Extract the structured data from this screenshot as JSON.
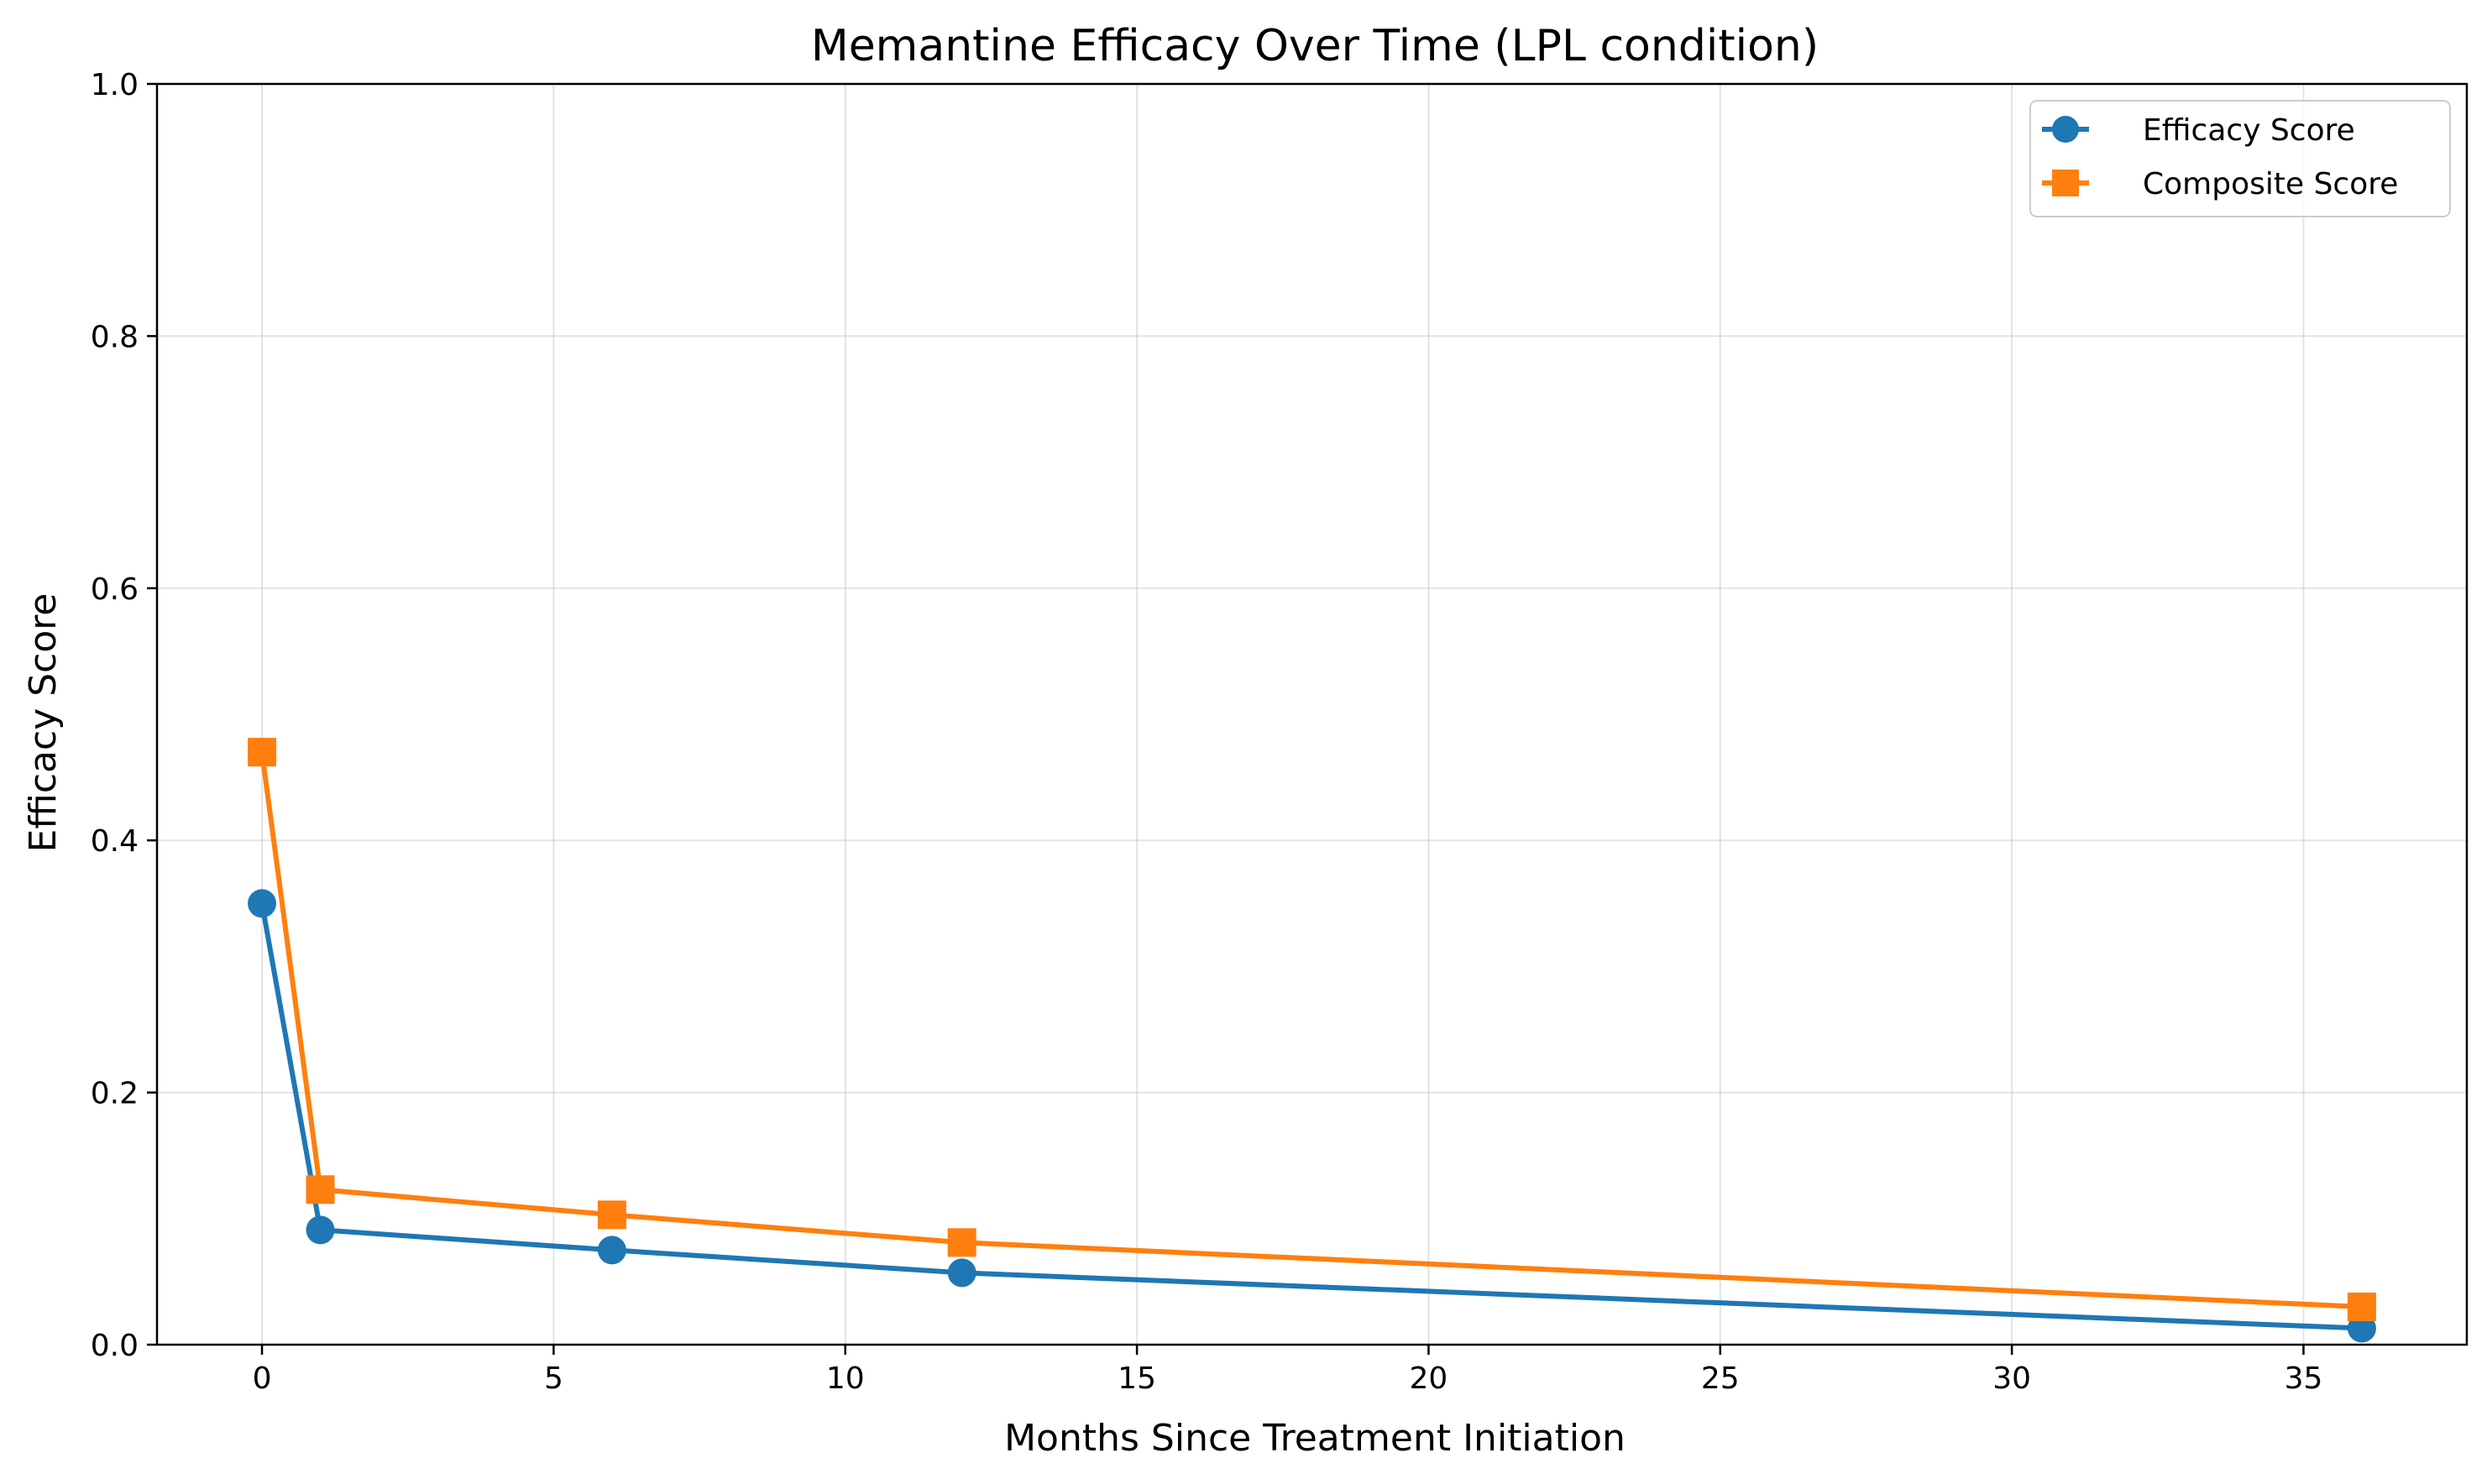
{
  "chart_data": {
    "type": "line",
    "title": "Memantine Efficacy Over Time (LPL condition)",
    "xlabel": "Months Since Treatment Initiation",
    "ylabel": "Efficacy Score",
    "xlim": [
      -1.8,
      37.8
    ],
    "ylim": [
      0,
      1.0
    ],
    "xticks": [
      0,
      5,
      10,
      15,
      20,
      25,
      30,
      35
    ],
    "yticks": [
      0.0,
      0.2,
      0.4,
      0.6,
      0.8,
      1.0
    ],
    "xtick_labels": [
      "0",
      "5",
      "10",
      "15",
      "20",
      "25",
      "30",
      "35"
    ],
    "ytick_labels": [
      "0.0",
      "0.2",
      "0.4",
      "0.6",
      "0.8",
      "1.0"
    ],
    "grid": true,
    "legend_position": "top-right",
    "x": [
      0,
      1,
      6,
      12,
      36
    ],
    "series": [
      {
        "name": "Efficacy Score",
        "values": [
          0.35,
          0.091,
          0.075,
          0.057,
          0.013
        ],
        "color": "#1f77b4",
        "marker": "circle"
      },
      {
        "name": "Composite Score",
        "values": [
          0.47,
          0.123,
          0.103,
          0.081,
          0.03
        ],
        "color": "#ff7f0e",
        "marker": "square"
      }
    ]
  }
}
